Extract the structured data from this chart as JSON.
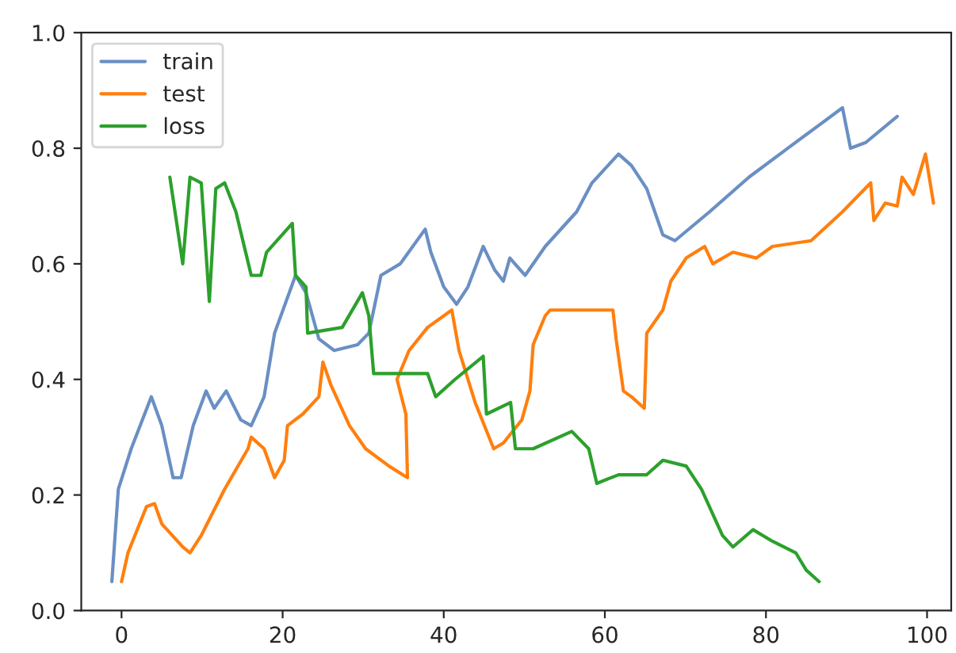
{
  "chart_data": {
    "type": "line",
    "xlim": [
      -5,
      103
    ],
    "ylim": [
      0,
      1
    ],
    "xticks": [
      0,
      20,
      40,
      60,
      80,
      100
    ],
    "yticks": [
      {
        "value": 0,
        "label": "0.0"
      },
      {
        "value": 0.2,
        "label": "0.2"
      },
      {
        "value": 0.4,
        "label": "0.4"
      },
      {
        "value": 0.6,
        "label": "0.6"
      },
      {
        "value": 0.8,
        "label": "0.8"
      },
      {
        "value": 1,
        "label": "1.0"
      }
    ],
    "grid": false,
    "legend": "top left",
    "line_style": "solid",
    "marker": "none",
    "series": [
      {
        "name": "train",
        "color": "#6a8fc4",
        "x": [
          -1.2,
          -0.4,
          1.2,
          3.7,
          5,
          6.4,
          7.4,
          8.9,
          10.5,
          11.5,
          13,
          14.8,
          16.1,
          17.7,
          19,
          21.6,
          22.9,
          24.5,
          26.4,
          29.3,
          30.7,
          32.2,
          34.6,
          37.7,
          38.4,
          40,
          41.6,
          43,
          44.9,
          46.3,
          47.4,
          48.2,
          50.1,
          52.6,
          56.5,
          58.4,
          61.7,
          63.3,
          65.2,
          67.2,
          68.7,
          73,
          77.9,
          82.7,
          86.6,
          89.5,
          90.5,
          92.4,
          96.3
        ],
        "values": [
          0.05,
          0.21,
          0.28,
          0.37,
          0.32,
          0.23,
          0.23,
          0.32,
          0.38,
          0.35,
          0.38,
          0.33,
          0.32,
          0.37,
          0.48,
          0.58,
          0.55,
          0.47,
          0.45,
          0.46,
          0.48,
          0.58,
          0.6,
          0.66,
          0.62,
          0.56,
          0.53,
          0.56,
          0.63,
          0.59,
          0.57,
          0.61,
          0.58,
          0.63,
          0.69,
          0.74,
          0.79,
          0.77,
          0.73,
          0.65,
          0.64,
          0.69,
          0.75,
          0.8,
          0.84,
          0.87,
          0.8,
          0.81,
          0.855
        ]
      },
      {
        "name": "test",
        "color": "#ff7f0e",
        "x": [
          0,
          0.8,
          3.1,
          4.1,
          5,
          7.6,
          8.5,
          9.9,
          12.8,
          15.7,
          16.1,
          17.7,
          19,
          20.2,
          20.6,
          22.5,
          24.5,
          25,
          26,
          28.3,
          30.3,
          33.2,
          35.5,
          35.3,
          34.2,
          35.7,
          38,
          41,
          41.9,
          43.9,
          46.2,
          47.4,
          49.7,
          50.7,
          51.1,
          52.6,
          53.2,
          61,
          61.4,
          62.3,
          63.3,
          64.9,
          65.2,
          67.2,
          68.2,
          70.1,
          72.4,
          73.4,
          75.9,
          78.8,
          80.8,
          85.6,
          89.5,
          93,
          93.4,
          94.8,
          96.3,
          96.9,
          98.3,
          99.8,
          100.8
        ],
        "values": [
          0.05,
          0.1,
          0.18,
          0.185,
          0.15,
          0.11,
          0.1,
          0.13,
          0.21,
          0.28,
          0.3,
          0.28,
          0.23,
          0.26,
          0.32,
          0.34,
          0.37,
          0.43,
          0.39,
          0.32,
          0.28,
          0.25,
          0.23,
          0.34,
          0.4,
          0.45,
          0.49,
          0.52,
          0.45,
          0.36,
          0.28,
          0.29,
          0.33,
          0.38,
          0.46,
          0.51,
          0.52,
          0.52,
          0.47,
          0.38,
          0.37,
          0.35,
          0.48,
          0.52,
          0.57,
          0.61,
          0.63,
          0.6,
          0.62,
          0.61,
          0.63,
          0.64,
          0.69,
          0.74,
          0.675,
          0.705,
          0.7,
          0.75,
          0.72,
          0.79,
          0.705
        ]
      },
      {
        "name": "loss",
        "color": "#2ca02c",
        "x": [
          6,
          7.6,
          8.5,
          9.9,
          10.9,
          11.7,
          12.8,
          14.2,
          16.1,
          17.3,
          18,
          21.2,
          21.6,
          22.9,
          23.1,
          27.4,
          29.9,
          30.7,
          31.3,
          38,
          39,
          41.4,
          44.9,
          45.3,
          48.3,
          48.9,
          51.1,
          55.9,
          58,
          59,
          61.7,
          65.2,
          67.2,
          70.1,
          72,
          74.6,
          75.9,
          78.4,
          80.8,
          83.7,
          85,
          86.6
        ],
        "values": [
          0.75,
          0.6,
          0.75,
          0.74,
          0.535,
          0.73,
          0.74,
          0.69,
          0.58,
          0.58,
          0.62,
          0.67,
          0.58,
          0.56,
          0.48,
          0.49,
          0.55,
          0.51,
          0.41,
          0.41,
          0.37,
          0.4,
          0.44,
          0.34,
          0.36,
          0.28,
          0.28,
          0.31,
          0.28,
          0.22,
          0.235,
          0.235,
          0.26,
          0.25,
          0.21,
          0.13,
          0.11,
          0.14,
          0.12,
          0.1,
          0.07,
          0.05
        ]
      }
    ]
  }
}
